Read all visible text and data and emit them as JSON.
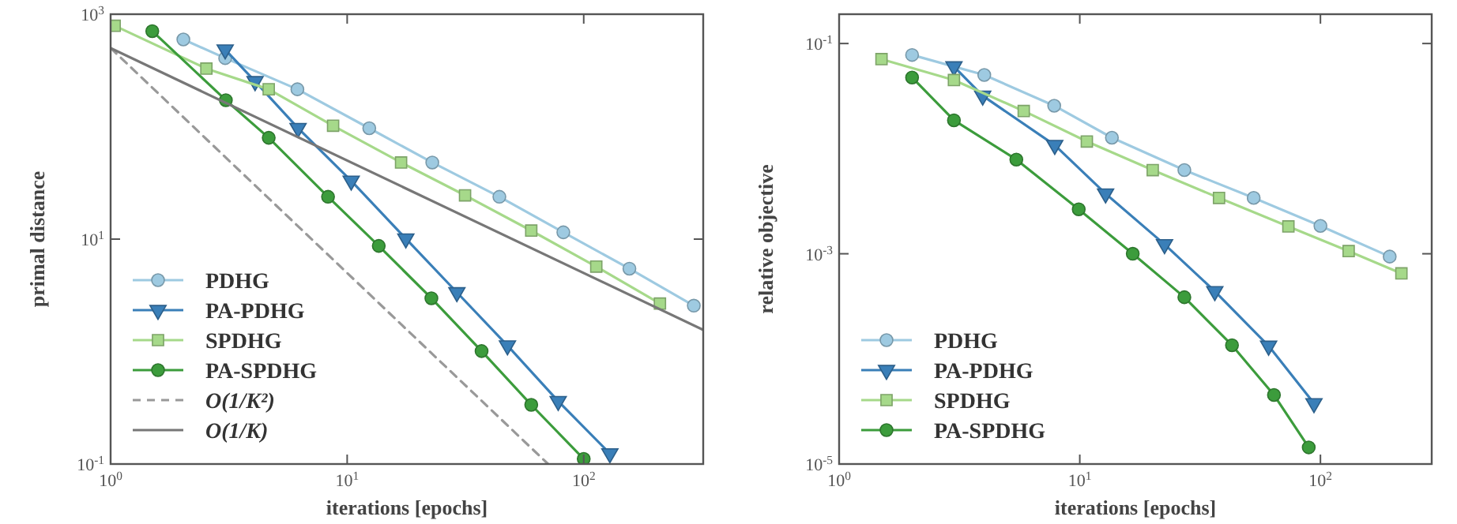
{
  "chart_data": [
    {
      "type": "line",
      "xlabel": "iterations [epochs]",
      "ylabel": "primal distance",
      "log": "xy",
      "legend": "bottom left",
      "xlim": [
        1,
        320
      ],
      "xticks": [
        {
          "value": 1,
          "label": "10$^{0}$"
        },
        {
          "value": 10,
          "label": "10$^{1}$"
        },
        {
          "value": 100,
          "label": "10$^{2}$"
        }
      ],
      "ylim": [
        0.1,
        1000
      ],
      "yticks": [
        {
          "value": 0.1,
          "label": "10$^{-1}$"
        },
        {
          "value": 10,
          "label": "10$^{1}$"
        },
        {
          "value": 1000,
          "label": "10$^{3}$"
        }
      ],
      "series": [
        {
          "name": "PDHG",
          "color": "#9ecae1",
          "marker": "circle",
          "x": [
            2.03,
            3.05,
            6.16,
            12.4,
            22.9,
            44,
            82,
            156,
            292
          ],
          "values": [
            596,
            407,
            215,
            96.8,
            48,
            23.8,
            11.5,
            5.46,
            2.56
          ]
        },
        {
          "name": "PA-PDHG",
          "color": "#3a7fb8",
          "marker": "triangle",
          "x": [
            3.05,
            4.08,
            6.2,
            10.4,
            17.7,
            29.1,
            47.6,
            78,
            129
          ],
          "values": [
            484,
            253,
            97,
            33,
            10.1,
            3.36,
            1.13,
            0.362,
            0.124
          ]
        },
        {
          "name": "SPDHG",
          "color": "#a6d98a",
          "marker": "square",
          "x": [
            1.04,
            2.54,
            4.66,
            8.72,
            16.9,
            31.5,
            60,
            113,
            210
          ],
          "values": [
            789,
            328,
            215,
            102,
            48,
            24.5,
            11.9,
            5.7,
            2.67
          ]
        },
        {
          "name": "PA-SPDHG",
          "color": "#3c9c3c",
          "marker": "circle",
          "x": [
            1.5,
            3.07,
            4.66,
            8.3,
            13.6,
            22.7,
            37,
            60,
            100
          ],
          "values": [
            707,
            172,
            79.6,
            23.8,
            8.7,
            2.98,
            1.01,
            0.336,
            0.111
          ]
        },
        {
          "name": "O(1/K²)",
          "color": "#999999",
          "marker": "none",
          "line_style": "dashed",
          "x": [
            1,
            70.7
          ],
          "values": [
            500,
            0.1
          ]
        },
        {
          "name": "O(1/K)",
          "color": "#777777",
          "marker": "none",
          "line_style": "solid",
          "x": [
            1,
            320
          ],
          "values": [
            500,
            1.56
          ]
        }
      ]
    },
    {
      "type": "line",
      "xlabel": "iterations [epochs]",
      "ylabel": "relative objective",
      "log": "xy",
      "legend": "bottom left",
      "xlim": [
        1,
        290
      ],
      "xticks": [
        {
          "value": 1,
          "label": "10$^{0}$"
        },
        {
          "value": 10,
          "label": "10$^{1}$"
        },
        {
          "value": 100,
          "label": "10$^{2}$"
        }
      ],
      "ylim": [
        1e-05,
        0.19
      ],
      "yticks": [
        {
          "value": 1e-05,
          "label": "10$^{-5}$"
        },
        {
          "value": 0.001,
          "label": "10$^{-3}$"
        },
        {
          "value": 0.1,
          "label": "10$^{-1}$"
        }
      ],
      "series": [
        {
          "name": "PDHG",
          "color": "#9ecae1",
          "marker": "circle",
          "x": [
            2.01,
            4.01,
            7.83,
            13.6,
            27.2,
            52.8,
            100,
            194
          ],
          "values": [
            0.0778,
            0.0502,
            0.0256,
            0.0127,
            0.00625,
            0.0034,
            0.00184,
            0.00094
          ]
        },
        {
          "name": "PA-PDHG",
          "color": "#3a7fb8",
          "marker": "triangle",
          "x": [
            3.0,
            3.95,
            7.87,
            12.8,
            22.5,
            36.4,
            60.9,
            94
          ],
          "values": [
            0.0604,
            0.0318,
            0.0108,
            0.00373,
            0.00123,
            0.00044,
            0.000133,
            3.78e-05
          ]
        },
        {
          "name": "SPDHG",
          "color": "#a6d98a",
          "marker": "square",
          "x": [
            1.5,
            3.0,
            5.85,
            10.7,
            20.1,
            37.9,
            73.6,
            131,
            217
          ],
          "values": [
            0.071,
            0.0449,
            0.0228,
            0.0117,
            0.00625,
            0.0034,
            0.00182,
            0.00106,
            0.00065
          ]
        },
        {
          "name": "PA-SPDHG",
          "color": "#3c9c3c",
          "marker": "circle",
          "x": [
            2.01,
            3.0,
            5.45,
            9.9,
            16.6,
            27.2,
            42.9,
            64.1,
            89.4
          ],
          "values": [
            0.0475,
            0.0186,
            0.00787,
            0.00265,
            0.001,
            0.000386,
            0.000135,
            4.54e-05,
            1.44e-05
          ]
        }
      ]
    }
  ]
}
